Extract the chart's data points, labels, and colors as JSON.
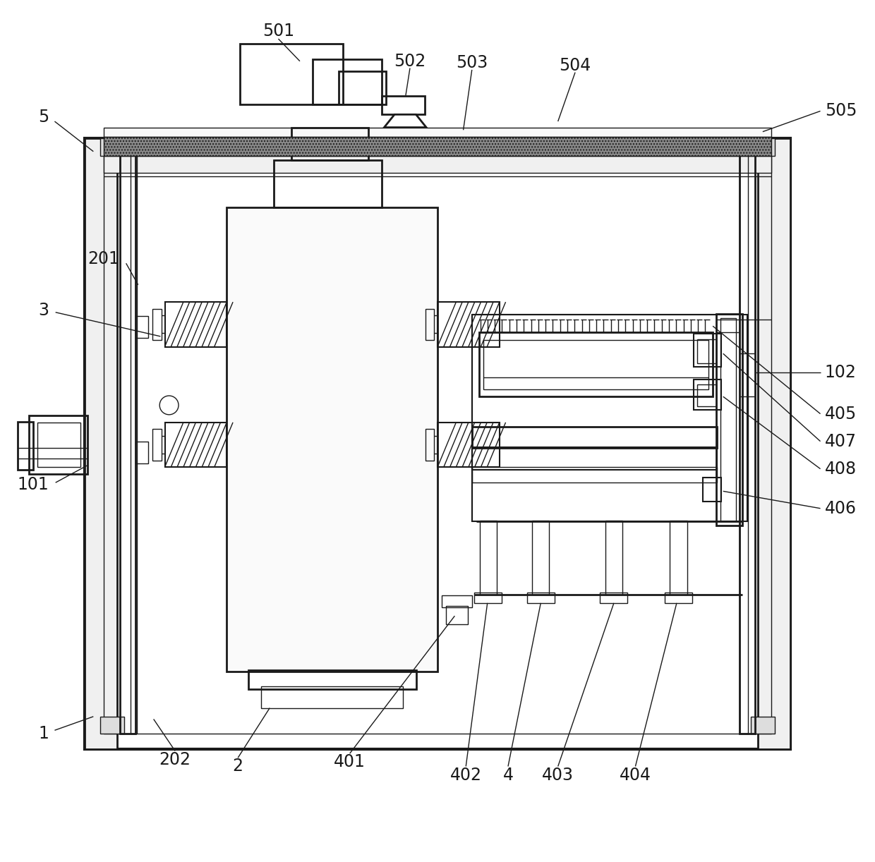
{
  "bg_color": "#ffffff",
  "line_color": "#1a1a1a",
  "label_color": "#1a1a1a",
  "figsize": [
    12.4,
    12.22
  ],
  "dpi": 100,
  "label_fontsize": 17
}
